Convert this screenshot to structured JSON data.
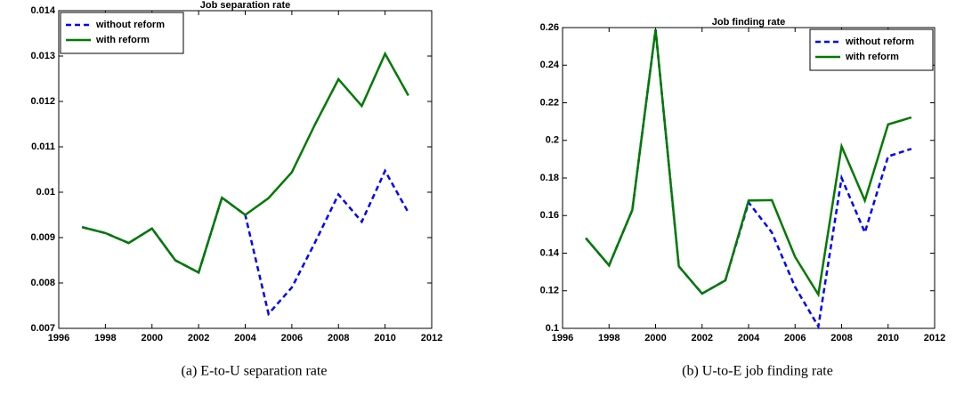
{
  "chart_data": [
    {
      "type": "line",
      "title": "Job separation rate",
      "caption": "(a)  E-to-U separation rate",
      "x": [
        1997,
        1998,
        1999,
        2000,
        2001,
        2002,
        2003,
        2004,
        2005,
        2006,
        2007,
        2008,
        2009,
        2010,
        2011
      ],
      "series": [
        {
          "name": "without reform",
          "color": "#0000ff",
          "dash": true,
          "values": [
            0.00923,
            0.0091,
            0.00888,
            0.0092,
            0.0085,
            0.00823,
            0.00988,
            0.0095,
            0.00732,
            0.0079,
            0.0089,
            0.00995,
            0.00935,
            0.01047,
            0.00955
          ]
        },
        {
          "name": "with reform",
          "color": "#007a00",
          "dash": false,
          "values": [
            0.00923,
            0.0091,
            0.00888,
            0.0092,
            0.0085,
            0.00823,
            0.00988,
            0.0095,
            0.00987,
            0.01044,
            0.0115,
            0.01249,
            0.0119,
            0.01305,
            0.01213
          ]
        }
      ],
      "xlim": [
        1996,
        2012
      ],
      "xticks": [
        1996,
        1998,
        2000,
        2002,
        2004,
        2006,
        2008,
        2010,
        2012
      ],
      "ylim": [
        0.007,
        0.014
      ],
      "yticks": [
        0.007,
        0.008,
        0.009,
        0.01,
        0.011,
        0.012,
        0.013,
        0.014
      ],
      "legend": "upper left"
    },
    {
      "type": "line",
      "title": "Job finding rate",
      "caption": "(b)  U-to-E job finding rate",
      "x": [
        1997,
        1998,
        1999,
        2000,
        2001,
        2002,
        2003,
        2004,
        2005,
        2006,
        2007,
        2008,
        2009,
        2010,
        2011
      ],
      "series": [
        {
          "name": "without reform",
          "color": "#0000ff",
          "dash": true,
          "values": [
            0.148,
            0.1335,
            0.163,
            0.259,
            0.133,
            0.1185,
            0.1255,
            0.167,
            0.151,
            0.122,
            0.101,
            0.18,
            0.151,
            0.1915,
            0.1955
          ]
        },
        {
          "name": "with reform",
          "color": "#007a00",
          "dash": false,
          "values": [
            0.148,
            0.1335,
            0.163,
            0.259,
            0.133,
            0.1185,
            0.1255,
            0.168,
            0.1682,
            0.138,
            0.118,
            0.1968,
            0.168,
            0.2085,
            0.2122
          ]
        }
      ],
      "xlim": [
        1996,
        2012
      ],
      "xticks": [
        1996,
        1998,
        2000,
        2002,
        2004,
        2006,
        2008,
        2010,
        2012
      ],
      "ylim": [
        0.1,
        0.26
      ],
      "yticks": [
        0.1,
        0.12,
        0.14,
        0.16,
        0.18,
        0.2,
        0.22,
        0.24,
        0.26
      ],
      "legend": "upper right"
    }
  ]
}
